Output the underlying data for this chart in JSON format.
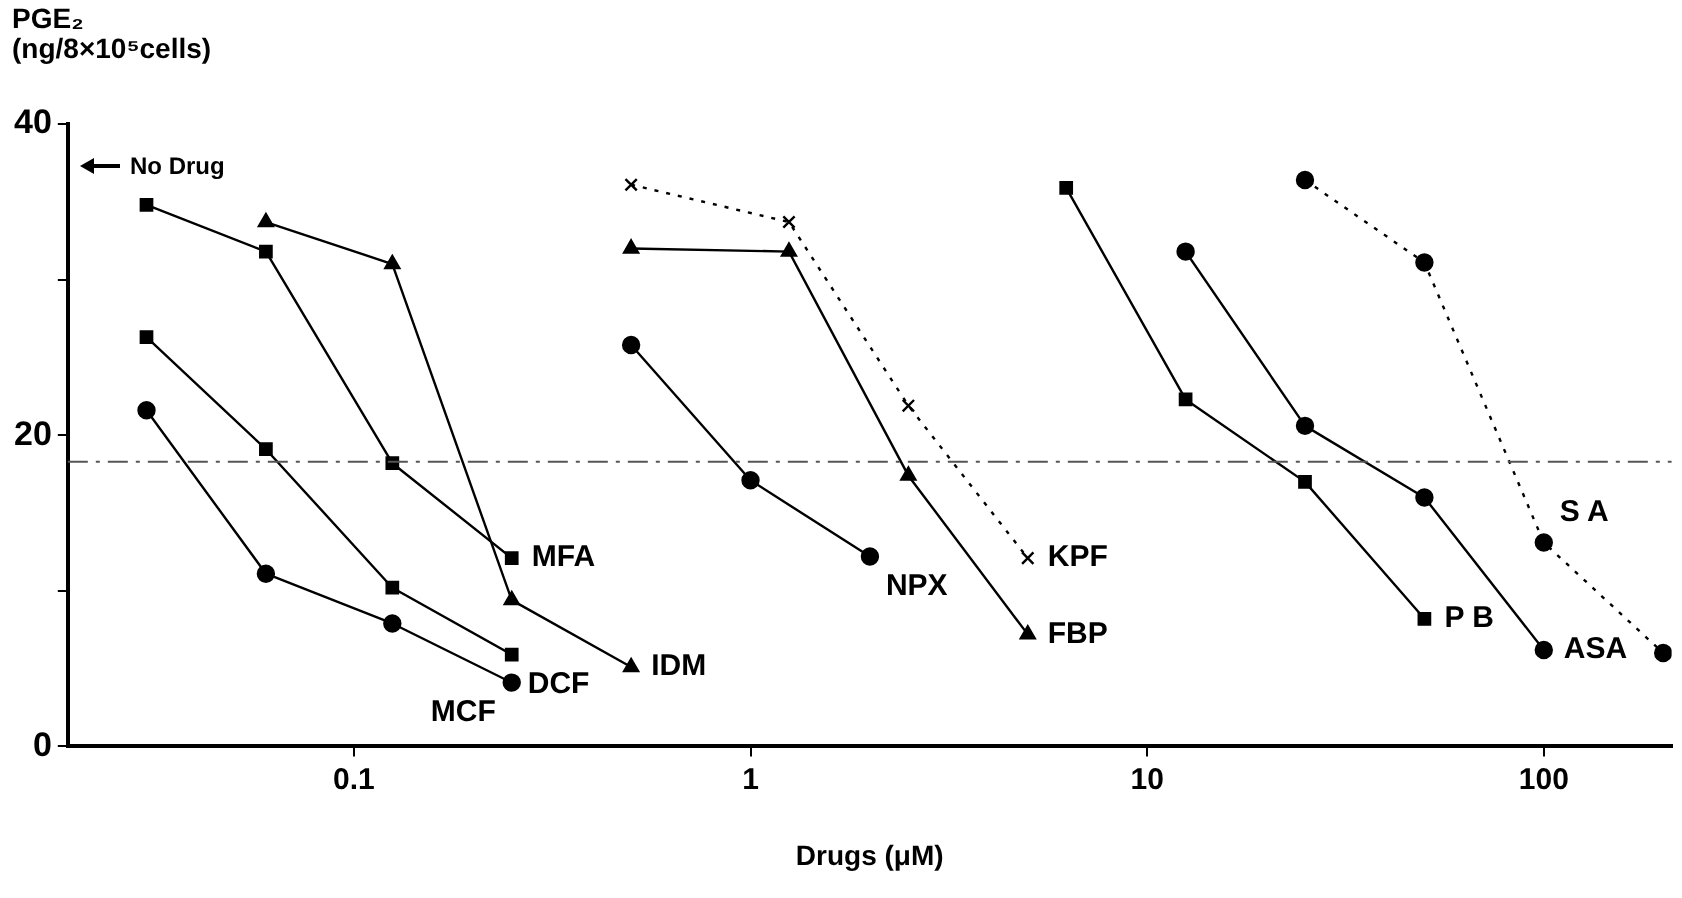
{
  "chart_data": {
    "type": "line",
    "ylabel": "PGE₂ (ng/8×10⁵cells)",
    "xlabel": "Drugs (μM)",
    "log": "x",
    "xlim": [
      0.019,
      210
    ],
    "xticks": [
      0.1,
      1,
      10,
      100
    ],
    "ylim": [
      0,
      40
    ],
    "yticks": [
      0,
      {
        "value": 10,
        "label": null
      },
      20,
      {
        "value": 30,
        "label": null
      },
      40
    ],
    "grid": false,
    "legend": false,
    "series": [
      {
        "name": "MFA",
        "color": "#000000",
        "marker": "square",
        "x": [
          0.03,
          0.06,
          0.125,
          0.25
        ],
        "values": [
          34.8,
          31.8,
          18.2,
          12.1
        ]
      },
      {
        "name": "IDM",
        "color": "#000000",
        "marker": "triangle",
        "x": [
          0.06,
          0.125,
          0.25,
          0.5
        ],
        "values": [
          33.7,
          31.0,
          9.4,
          5.1
        ]
      },
      {
        "name": "DCF",
        "color": "#000000",
        "marker": "square",
        "x": [
          0.03,
          0.06,
          0.125,
          0.25
        ],
        "values": [
          26.3,
          19.1,
          10.2,
          5.9
        ]
      },
      {
        "name": "MCF",
        "color": "#000000",
        "marker": "circle",
        "x": [
          0.03,
          0.06,
          0.125,
          0.25
        ],
        "values": [
          21.6,
          11.1,
          7.9,
          4.1
        ]
      },
      {
        "name": "NPX",
        "color": "#000000",
        "marker": "circle",
        "x": [
          0.5,
          1,
          2
        ],
        "values": [
          25.8,
          17.1,
          12.2
        ]
      },
      {
        "name": "FBP",
        "color": "#000000",
        "marker": "triangle",
        "x": [
          0.5,
          1.25,
          2.5,
          5
        ],
        "values": [
          32.0,
          31.8,
          17.4,
          7.2
        ]
      },
      {
        "name": "KPF",
        "color": "#000000",
        "marker": "cross",
        "line_style": "dotted",
        "x": [
          0.5,
          1.25,
          2.5,
          5
        ],
        "values": [
          36.1,
          33.7,
          21.9,
          12.1
        ]
      },
      {
        "name": "P B",
        "color": "#000000",
        "marker": "square",
        "x": [
          6.25,
          12.5,
          25,
          50
        ],
        "values": [
          35.9,
          22.3,
          17.0,
          8.2
        ]
      },
      {
        "name": "ASA",
        "color": "#000000",
        "marker": "circle",
        "x": [
          12.5,
          25,
          50,
          100
        ],
        "values": [
          31.8,
          20.6,
          16.0,
          6.2
        ]
      },
      {
        "name": "S A",
        "color": "#000000",
        "marker": "circle",
        "line_style": "dotted",
        "x": [
          25,
          50,
          100,
          200
        ],
        "values": [
          36.4,
          31.1,
          13.1,
          6.0
        ]
      }
    ],
    "ref_lines": [
      {
        "axis": "y",
        "value": 18.3,
        "line_style": "dashed",
        "color": "#555555"
      }
    ],
    "annotations": [
      "No Drug"
    ]
  }
}
